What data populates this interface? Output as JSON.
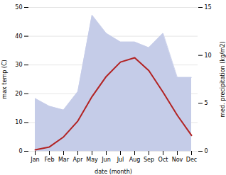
{
  "chart_data": {
    "type": "line",
    "xlabel": "date (month)",
    "ylabel": "max temp (C)",
    "y2label": "med. precipitation (kg/m2)",
    "categories": [
      "Jan",
      "Feb",
      "Mar",
      "Apr",
      "May",
      "Jun",
      "Jul",
      "Aug",
      "Sep",
      "Oct",
      "Nov",
      "Dec"
    ],
    "series": [
      {
        "type": "area",
        "axis": "y2",
        "color": "#c5cce8",
        "values": [
          5.5,
          4.7,
          4.3,
          6.2,
          14.2,
          12.3,
          11.4,
          11.4,
          10.8,
          12.3,
          7.7,
          7.7
        ]
      },
      {
        "type": "line",
        "color": "#b22222",
        "values": [
          0.5,
          1.5,
          5.0,
          10.5,
          19.0,
          26.0,
          31.0,
          32.5,
          28.0,
          20.5,
          12.5,
          5.5
        ]
      }
    ],
    "ylim": [
      0,
      50
    ],
    "yticks": [
      0,
      10,
      20,
      30,
      40,
      50
    ],
    "y2lim": [
      0,
      15
    ],
    "y2ticks": [
      0,
      5,
      10,
      15
    ],
    "grid": true
  }
}
